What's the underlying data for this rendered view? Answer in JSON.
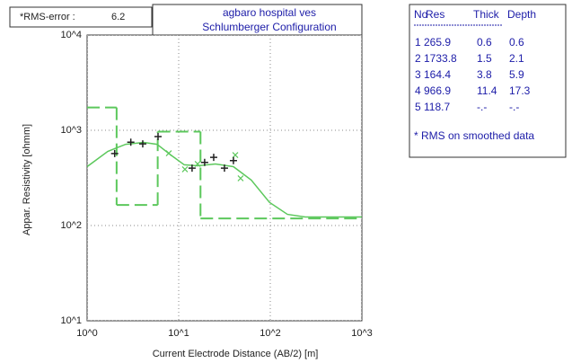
{
  "chart_data": {
    "type": "sounding",
    "rms_label": "*RMS-error :",
    "rms_value": 6.2,
    "title": "agbaro hospital ves",
    "subtitle": "Schlumberger Configuration",
    "x_label": "Current Electrode Distance (AB/2) [m]",
    "y_label": "Appar. Resistivity [ohmm]",
    "log_x": true,
    "log_y": true,
    "grid": true,
    "xlim": [
      1,
      1000
    ],
    "xticks": [
      {
        "value": 1,
        "label": "10^0"
      },
      {
        "value": 10,
        "label": "10^1"
      },
      {
        "value": 100,
        "label": "10^2"
      },
      {
        "value": 1000,
        "label": "10^3"
      }
    ],
    "ylim": [
      10,
      10000
    ],
    "yticks": [
      {
        "value": 10,
        "label": "10^1"
      },
      {
        "value": 100,
        "label": "10^2"
      },
      {
        "value": 1000,
        "label": "10^3"
      },
      {
        "value": 10000,
        "label": "10^4"
      }
    ],
    "color": "#5cc85c",
    "observed": {
      "color": "#222222",
      "x": [
        2.0,
        3.0,
        4.05,
        5.95,
        14.0,
        19.2,
        24.1,
        31.6,
        39.6
      ],
      "values": [
        570,
        750,
        720,
        860,
        400,
        460,
        520,
        400,
        480
      ]
    },
    "calculated": {
      "color": "#5cc85c",
      "x": [
        7.8,
        11.7,
        16.1,
        41.5,
        47.4
      ],
      "values": [
        574,
        389,
        443,
        550,
        313
      ]
    },
    "curve": {
      "color": "#5cc85c",
      "x": [
        1,
        1.68,
        2.64,
        4.15,
        5.8,
        8.2,
        11.5,
        16.1,
        25.2,
        39.6,
        62,
        98,
        154,
        241,
        1000
      ],
      "values": [
        415,
        600,
        713,
        745,
        713,
        550,
        434,
        424,
        443,
        415,
        300,
        175,
        131,
        123,
        123
      ]
    }
  },
  "table": {
    "header": [
      "No",
      "Res",
      "Thick",
      "Depth"
    ],
    "rows": [
      [
        1,
        265.9,
        0.6,
        0.6
      ],
      [
        2,
        1733.8,
        1.5,
        2.1
      ],
      [
        3,
        164.4,
        3.8,
        5.9
      ],
      [
        4,
        966.9,
        11.4,
        17.3
      ],
      [
        5,
        118.7,
        "-.-",
        "-.-"
      ]
    ],
    "note": "* RMS on smoothed data"
  }
}
